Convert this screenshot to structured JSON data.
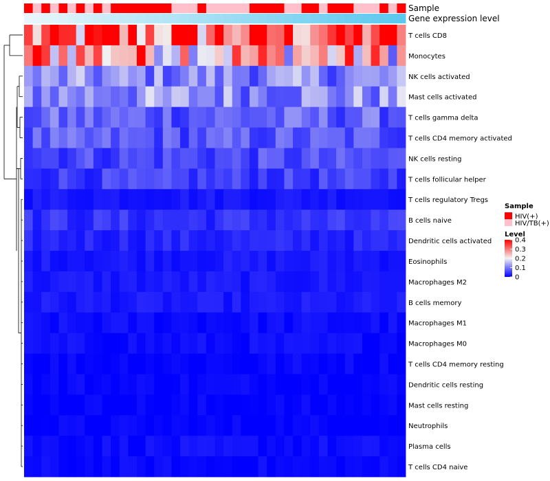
{
  "chart_data": {
    "type": "heatmap",
    "title": "",
    "annotation_labels": [
      "Sample",
      "Gene expression level"
    ],
    "rows": [
      "T cells CD8",
      "Monocytes",
      "NK cells activated",
      "Mast cells activated",
      "T cells gamma delta",
      "T cells CD4 memory activated",
      "NK cells resting",
      "T cells follicular helper",
      "T cells regulatory  Tregs",
      "B cells naive",
      "Dendritic cells activated",
      "Eosinophils",
      "Macrophages M2",
      "B cells memory",
      "Macrophages M1",
      "Macrophages M0",
      "T cells CD4 memory resting",
      "Dendritic cells resting",
      "Mast cells resting",
      "Neutrophils",
      "Plasma cells",
      "T cells CD4 naive"
    ],
    "n_samples": 44,
    "sample_groups": [
      "HIV(+)",
      "HIV/TB(+)",
      "HIV(+)",
      "HIV/TB(+)",
      "HIV(+)",
      "HIV/TB(+)",
      "HIV(+)",
      "HIV/TB(+)",
      "HIV(+)",
      "HIV/TB(+)",
      "HIV(+)",
      "HIV(+)",
      "HIV(+)",
      "HIV(+)",
      "HIV(+)",
      "HIV(+)",
      "HIV(+)",
      "HIV/TB(+)",
      "HIV/TB(+)",
      "HIV/TB(+)",
      "HIV(+)",
      "HIV/TB(+)",
      "HIV/TB(+)",
      "HIV/TB(+)",
      "HIV/TB(+)",
      "HIV/TB(+)",
      "HIV(+)",
      "HIV(+)",
      "HIV(+)",
      "HIV(+)",
      "HIV/TB(+)",
      "HIV/TB(+)",
      "HIV(+)",
      "HIV(+)",
      "HIV/TB(+)",
      "HIV(+)",
      "HIV(+)",
      "HIV(+)",
      "HIV/TB(+)",
      "HIV/TB(+)",
      "HIV/TB(+)",
      "HIV(+)",
      "HIV/TB(+)",
      "HIV(+)"
    ],
    "gene_expression_gradient": [
      "#e8f6fb",
      "#5bc8ee"
    ],
    "value_range": [
      0,
      0.4
    ],
    "colorscale": [
      {
        "value": 0,
        "color": "#0000ff"
      },
      {
        "value": 0.2,
        "color": "#f2f2f2"
      },
      {
        "value": 0.4,
        "color": "#ff0000"
      }
    ],
    "row_means": [
      0.32,
      0.27,
      0.11,
      0.12,
      0.08,
      0.07,
      0.06,
      0.05,
      0.02,
      0.04,
      0.03,
      0.02,
      0.02,
      0.02,
      0.01,
      0.01,
      0.005,
      0.005,
      0.002,
      0.002,
      0.01,
      0.005
    ],
    "legend": {
      "sample_title": "Sample",
      "sample_entries": [
        {
          "label": "HIV(+)",
          "color": "#ff0000"
        },
        {
          "label": "HIV/TB(+)",
          "color": "#ffc0cb"
        }
      ],
      "level_title": "Level",
      "level_ticks": [
        "0.4",
        "0.3",
        "0.2",
        "0.1",
        "0"
      ],
      "level_values": [
        0.4,
        0.3,
        0.2,
        0.1,
        0
      ]
    },
    "row_dendrogram": true,
    "legend_position": "right"
  }
}
